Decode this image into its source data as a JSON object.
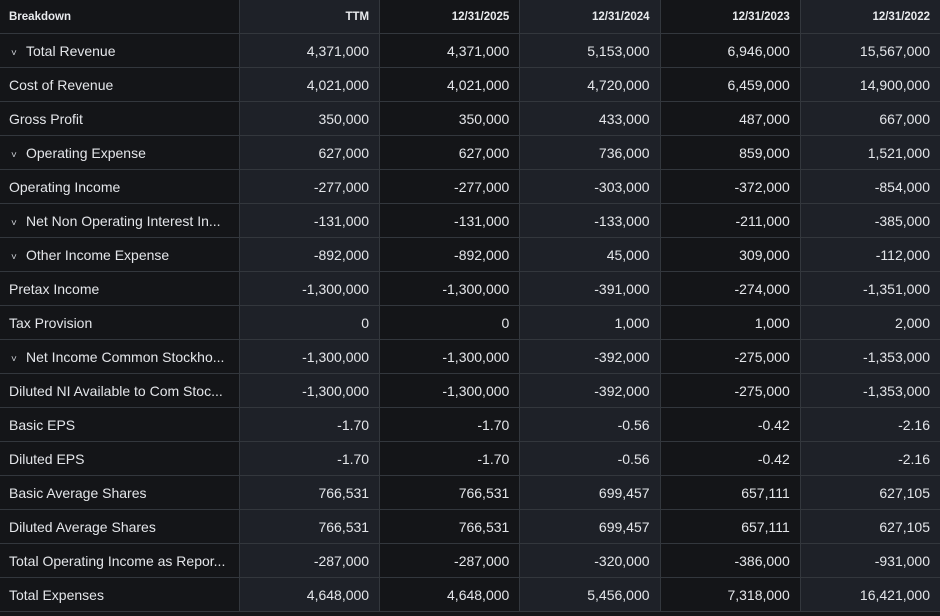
{
  "header": {
    "breakdown": "Breakdown",
    "columns": [
      "TTM",
      "12/31/2025",
      "12/31/2024",
      "12/31/2023",
      "12/31/2022"
    ]
  },
  "rows": [
    {
      "label": "Total Revenue",
      "expandable": true,
      "values": [
        "4,371,000",
        "4,371,000",
        "5,153,000",
        "6,946,000",
        "15,567,000"
      ]
    },
    {
      "label": "Cost of Revenue",
      "expandable": false,
      "values": [
        "4,021,000",
        "4,021,000",
        "4,720,000",
        "6,459,000",
        "14,900,000"
      ]
    },
    {
      "label": "Gross Profit",
      "expandable": false,
      "values": [
        "350,000",
        "350,000",
        "433,000",
        "487,000",
        "667,000"
      ]
    },
    {
      "label": "Operating Expense",
      "expandable": true,
      "values": [
        "627,000",
        "627,000",
        "736,000",
        "859,000",
        "1,521,000"
      ]
    },
    {
      "label": "Operating Income",
      "expandable": false,
      "values": [
        "-277,000",
        "-277,000",
        "-303,000",
        "-372,000",
        "-854,000"
      ]
    },
    {
      "label": "Net Non Operating Interest In...",
      "expandable": true,
      "values": [
        "-131,000",
        "-131,000",
        "-133,000",
        "-211,000",
        "-385,000"
      ]
    },
    {
      "label": "Other Income Expense",
      "expandable": true,
      "values": [
        "-892,000",
        "-892,000",
        "45,000",
        "309,000",
        "-112,000"
      ]
    },
    {
      "label": "Pretax Income",
      "expandable": false,
      "values": [
        "-1,300,000",
        "-1,300,000",
        "-391,000",
        "-274,000",
        "-1,351,000"
      ]
    },
    {
      "label": "Tax Provision",
      "expandable": false,
      "values": [
        "0",
        "0",
        "1,000",
        "1,000",
        "2,000"
      ]
    },
    {
      "label": "Net Income Common Stockho...",
      "expandable": true,
      "values": [
        "-1,300,000",
        "-1,300,000",
        "-392,000",
        "-275,000",
        "-1,353,000"
      ]
    },
    {
      "label": "Diluted NI Available to Com Stoc...",
      "expandable": false,
      "values": [
        "-1,300,000",
        "-1,300,000",
        "-392,000",
        "-275,000",
        "-1,353,000"
      ]
    },
    {
      "label": "Basic EPS",
      "expandable": false,
      "values": [
        "-1.70",
        "-1.70",
        "-0.56",
        "-0.42",
        "-2.16"
      ]
    },
    {
      "label": "Diluted EPS",
      "expandable": false,
      "values": [
        "-1.70",
        "-1.70",
        "-0.56",
        "-0.42",
        "-2.16"
      ]
    },
    {
      "label": "Basic Average Shares",
      "expandable": false,
      "values": [
        "766,531",
        "766,531",
        "699,457",
        "657,111",
        "627,105"
      ]
    },
    {
      "label": "Diluted Average Shares",
      "expandable": false,
      "values": [
        "766,531",
        "766,531",
        "699,457",
        "657,111",
        "627,105"
      ]
    },
    {
      "label": "Total Operating Income as Repor...",
      "expandable": false,
      "values": [
        "-287,000",
        "-287,000",
        "-320,000",
        "-386,000",
        "-931,000"
      ]
    },
    {
      "label": "Total Expenses",
      "expandable": false,
      "values": [
        "4,648,000",
        "4,648,000",
        "5,456,000",
        "7,318,000",
        "16,421,000"
      ]
    }
  ]
}
